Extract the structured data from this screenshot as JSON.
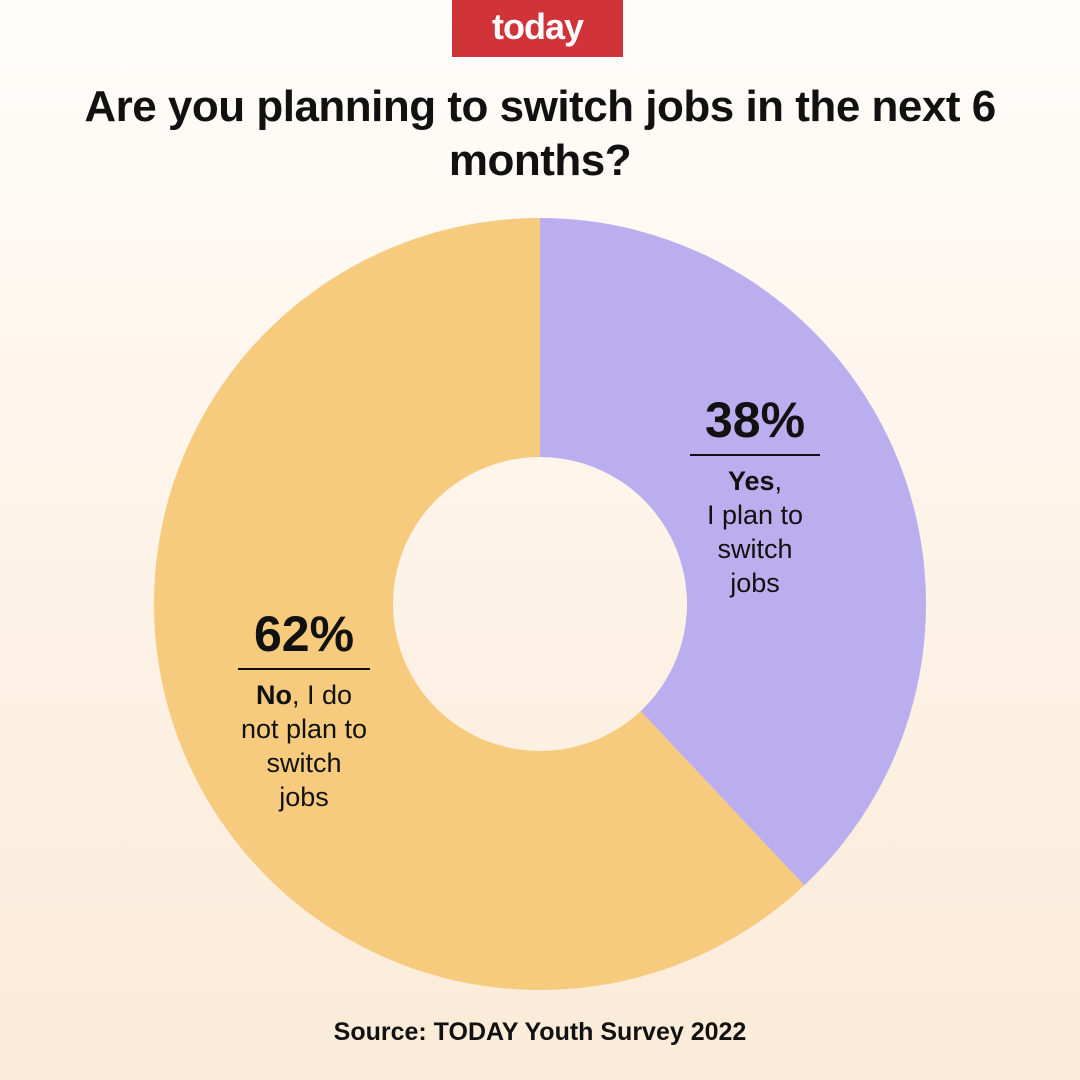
{
  "logo": "today",
  "chart_data": {
    "type": "pie",
    "donut": true,
    "title": "Are you planning to switch jobs in the next 6 months?",
    "slices": [
      {
        "label_bold": "Yes",
        "label_rest": "I plan to switch jobs",
        "value": 38,
        "display": "38%",
        "color": "#bbaeee"
      },
      {
        "label_bold": "No",
        "label_rest": "I do not plan to switch jobs",
        "value": 62,
        "display": "62%",
        "color": "#f6cb7e"
      }
    ],
    "source": "Source: TODAY Youth Survey 2022"
  }
}
